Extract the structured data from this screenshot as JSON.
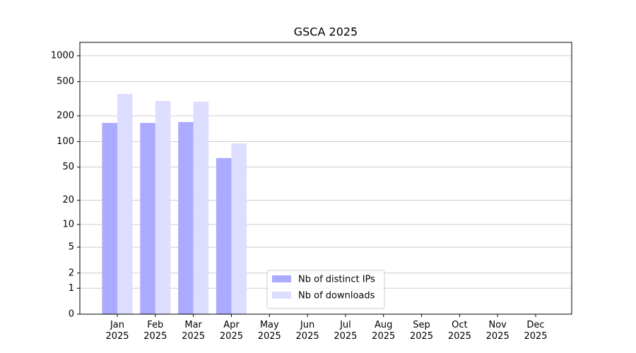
{
  "chart_data": {
    "type": "bar",
    "title": "GSCA 2025",
    "categories": [
      "Jan\n2025",
      "Feb\n2025",
      "Mar\n2025",
      "Apr\n2025",
      "May\n2025",
      "Jun\n2025",
      "Jul\n2025",
      "Aug\n2025",
      "Sep\n2025",
      "Oct\n2025",
      "Nov\n2025",
      "Dec\n2025"
    ],
    "series": [
      {
        "name": "Nb of distinct IPs",
        "color": "#aaaaff",
        "values": [
          165,
          165,
          169,
          64,
          null,
          null,
          null,
          null,
          null,
          null,
          null,
          null
        ]
      },
      {
        "name": "Nb of downloads",
        "color": "#ddddff",
        "values": [
          360,
          298,
          292,
          95,
          null,
          null,
          null,
          null,
          null,
          null,
          null,
          null
        ]
      }
    ],
    "yscale": "log1p",
    "ylim": [
      0,
      1430
    ],
    "yticks": [
      0,
      1,
      2,
      5,
      10,
      20,
      50,
      100,
      200,
      500,
      1000
    ],
    "grid": true,
    "legend": "lower center"
  }
}
